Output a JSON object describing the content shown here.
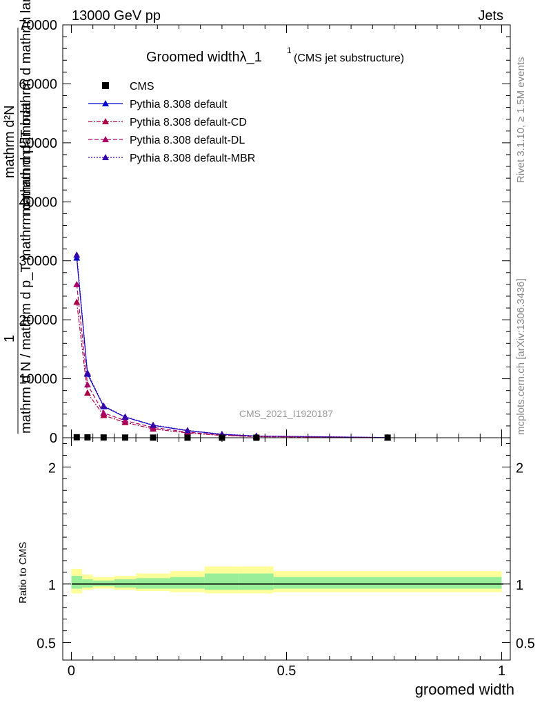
{
  "header": {
    "left": "13000 GeV pp",
    "right": "Jets"
  },
  "side_labels": {
    "rivet": "Rivet 3.1.10, ≥ 1.5M events",
    "mcplots": "mcplots.cern.ch [arXiv:1306.3436]"
  },
  "chart_data": {
    "type": "line",
    "title_main": "Groomed widthλ_1",
    "title_sup": "1",
    "title_sub": "(CMS jet substructure)",
    "watermark": "CMS_2021_I1920187",
    "xlabel": "groomed width",
    "ylabel_numer": "mathrm d²N",
    "ylabel_numer2": "1",
    "ylabel_denom": "mathrm d N / mathrm d p_T mathrm d mathrm lambda",
    "ylabel_denom2": "mathrm d p_T mathrm d mathrm lambda",
    "ratio_ylabel": "Ratio to CMS",
    "xlim": [
      -0.02,
      1.02
    ],
    "ylim": [
      0,
      70000
    ],
    "ratio_ylim": [
      0.35,
      2.25
    ],
    "x_ticks": [
      {
        "value": 0,
        "label": "0"
      },
      {
        "value": 0.5,
        "label": "0.5"
      },
      {
        "value": 1,
        "label": "1"
      }
    ],
    "y_ticks": [
      {
        "value": 0,
        "label": "0"
      },
      {
        "value": 10000,
        "label": "10000"
      },
      {
        "value": 20000,
        "label": "20000"
      },
      {
        "value": 30000,
        "label": "30000"
      },
      {
        "value": 40000,
        "label": "40000"
      },
      {
        "value": 50000,
        "label": "50000"
      },
      {
        "value": 60000,
        "label": "60000"
      },
      {
        "value": 70000,
        "label": "70000"
      }
    ],
    "ratio_ticks": [
      {
        "value": 0.5,
        "label": "0.5"
      },
      {
        "value": 1,
        "label": "1"
      },
      {
        "value": 2,
        "label": "2"
      }
    ],
    "bin_edges": [
      0,
      0.025,
      0.05,
      0.1,
      0.15,
      0.23,
      0.31,
      0.39,
      0.47,
      1.0
    ],
    "x": [
      0.0125,
      0.0375,
      0.075,
      0.125,
      0.19,
      0.27,
      0.35,
      0.43,
      0.735
    ],
    "cms": [
      80,
      60,
      40,
      30,
      20,
      12,
      8,
      5,
      20
    ],
    "band_outer": [
      [
        0.92,
        1.13
      ],
      [
        0.95,
        1.08
      ],
      [
        0.96,
        1.06
      ],
      [
        0.95,
        1.07
      ],
      [
        0.94,
        1.09
      ],
      [
        0.93,
        1.11
      ],
      [
        0.92,
        1.15
      ],
      [
        0.92,
        1.15
      ],
      [
        0.93,
        1.11
      ]
    ],
    "band_inner": [
      [
        0.96,
        1.07
      ],
      [
        0.97,
        1.04
      ],
      [
        0.98,
        1.03
      ],
      [
        0.97,
        1.04
      ],
      [
        0.96,
        1.05
      ],
      [
        0.96,
        1.06
      ],
      [
        0.95,
        1.09
      ],
      [
        0.95,
        1.09
      ],
      [
        0.96,
        1.06
      ]
    ],
    "series": [
      {
        "name": "Pythia 8.308 default",
        "color": "#0000cc",
        "dash": "",
        "values": [
          30500,
          10800,
          5300,
          3500,
          2100,
          1200,
          580,
          280,
          30
        ]
      },
      {
        "name": "Pythia 8.308 default-CD",
        "color": "#aa0044",
        "dash": "6,2,2,2",
        "values": [
          23000,
          7600,
          3800,
          2600,
          1500,
          800,
          380,
          180,
          20
        ]
      },
      {
        "name": "Pythia 8.308 default-DL",
        "color": "#aa0066",
        "dash": "6,3",
        "values": [
          26000,
          9000,
          4200,
          2900,
          1750,
          950,
          450,
          220,
          25
        ]
      },
      {
        "name": "Pythia 8.308 default-MBR",
        "color": "#3300aa",
        "dash": "2,2",
        "values": [
          31000,
          11000,
          5400,
          3550,
          2150,
          1250,
          600,
          300,
          32
        ]
      }
    ],
    "legend": {
      "cms_label": "CMS",
      "placement": "top-left"
    }
  }
}
